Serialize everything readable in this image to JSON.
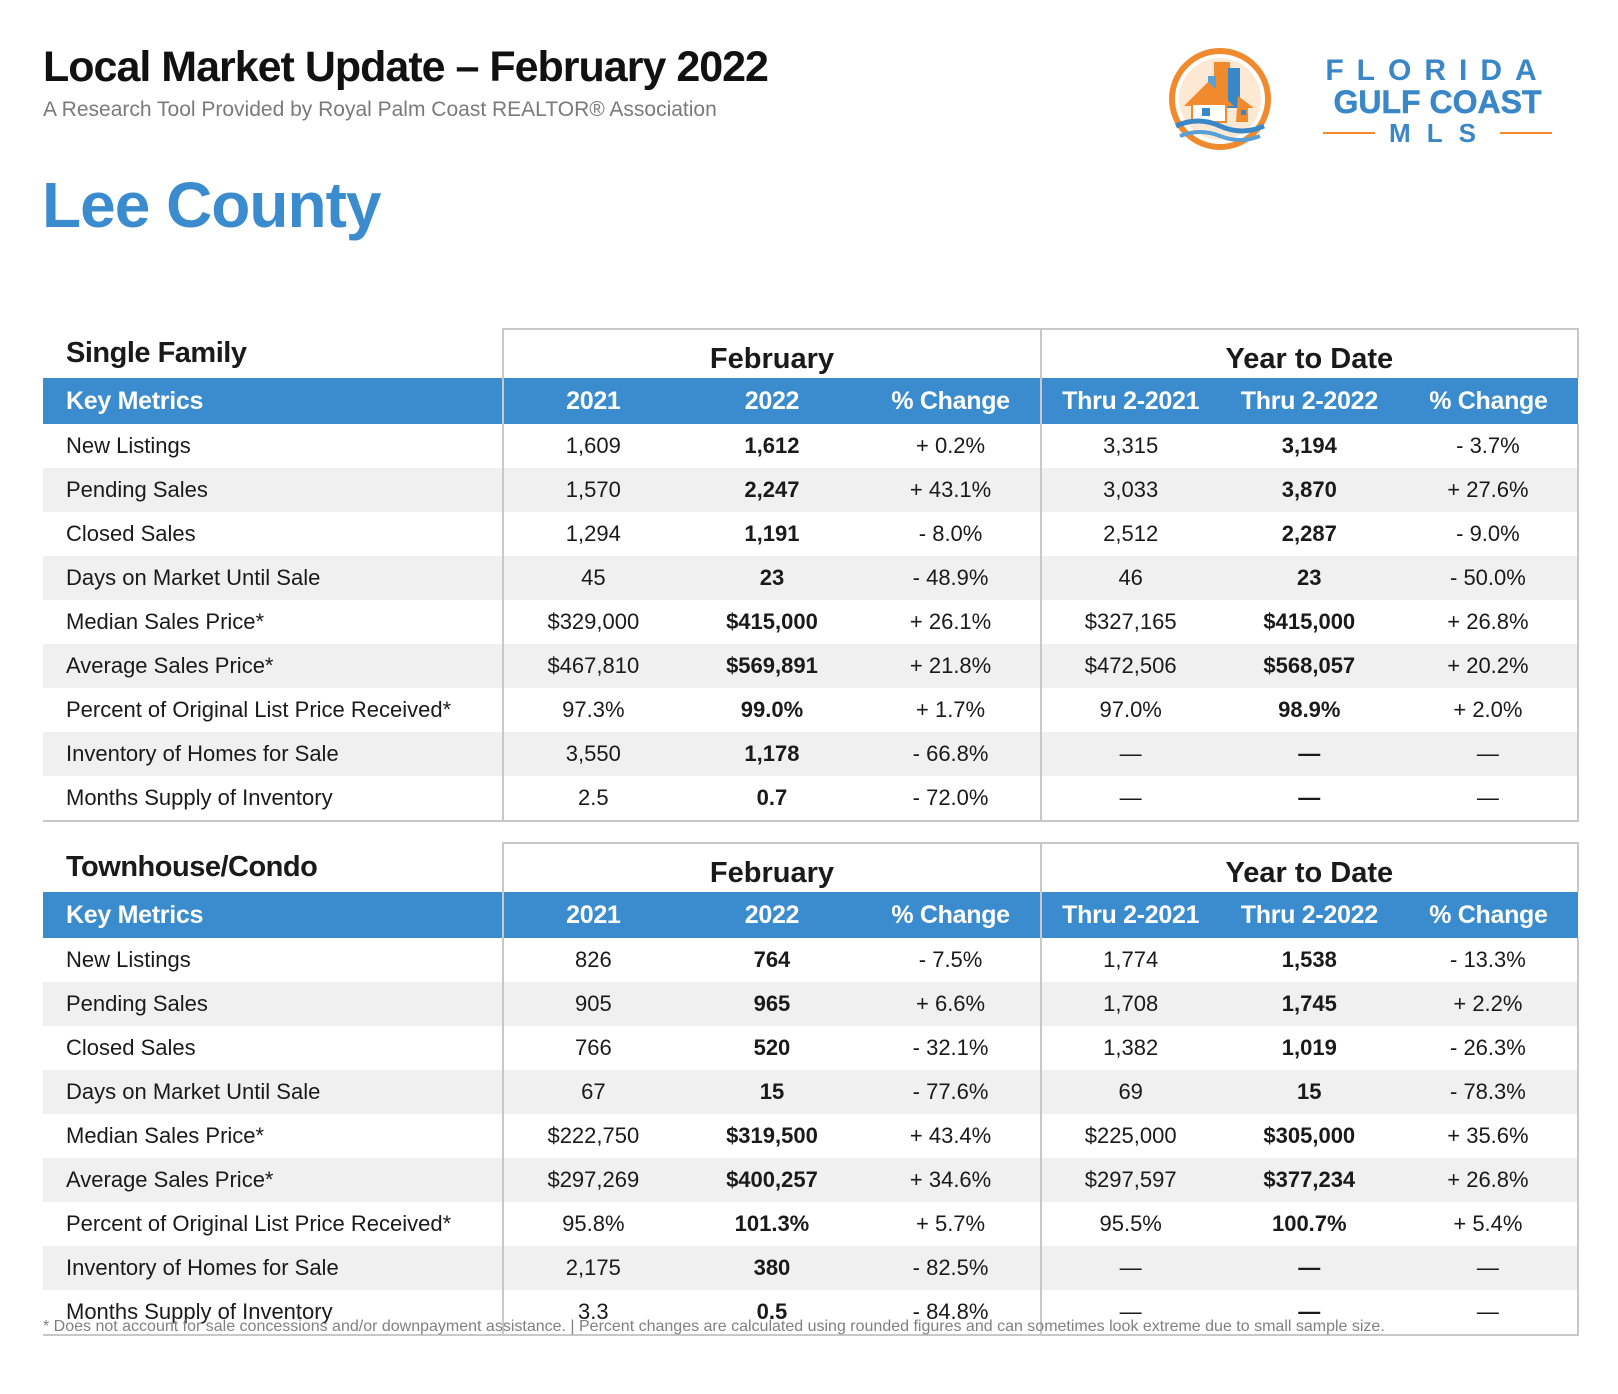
{
  "header": {
    "title": "Local Market Update – February 2022",
    "subtitle": "A Research Tool Provided by Royal Palm Coast REALTOR® Association",
    "county": "Lee County"
  },
  "logo": {
    "line1": "FLORIDA",
    "line2": "GULF COAST",
    "line3": "MLS",
    "colors": {
      "blue": "#3a87c8",
      "orange": "#f08a2c"
    }
  },
  "colors": {
    "accent_blue": "#3a8cce",
    "row_shade": "#f0f0f0",
    "border": "#c8c8c8"
  },
  "columns": {
    "group_month": "February",
    "group_ytd": "Year to Date",
    "key_metrics": "Key Metrics",
    "m2021": "2021",
    "m2022": "2022",
    "pct": "% Change",
    "ytd2021": "Thru 2-2021",
    "ytd2022": "Thru 2-2022"
  },
  "single_family": {
    "title": "Single Family",
    "rows": [
      [
        "New Listings",
        "1,609",
        "1,612",
        "+ 0.2%",
        "3,315",
        "3,194",
        "- 3.7%"
      ],
      [
        "Pending Sales",
        "1,570",
        "2,247",
        "+ 43.1%",
        "3,033",
        "3,870",
        "+ 27.6%"
      ],
      [
        "Closed Sales",
        "1,294",
        "1,191",
        "- 8.0%",
        "2,512",
        "2,287",
        "- 9.0%"
      ],
      [
        "Days on Market Until Sale",
        "45",
        "23",
        "- 48.9%",
        "46",
        "23",
        "- 50.0%"
      ],
      [
        "Median Sales Price*",
        "$329,000",
        "$415,000",
        "+ 26.1%",
        "$327,165",
        "$415,000",
        "+ 26.8%"
      ],
      [
        "Average Sales Price*",
        "$467,810",
        "$569,891",
        "+ 21.8%",
        "$472,506",
        "$568,057",
        "+ 20.2%"
      ],
      [
        "Percent of Original List Price Received*",
        "97.3%",
        "99.0%",
        "+ 1.7%",
        "97.0%",
        "98.9%",
        "+ 2.0%"
      ],
      [
        "Inventory of Homes for Sale",
        "3,550",
        "1,178",
        "- 66.8%",
        "—",
        "—",
        "—"
      ],
      [
        "Months Supply of Inventory",
        "2.5",
        "0.7",
        "- 72.0%",
        "—",
        "—",
        "—"
      ]
    ]
  },
  "townhouse_condo": {
    "title": "Townhouse/Condo",
    "rows": [
      [
        "New Listings",
        "826",
        "764",
        "- 7.5%",
        "1,774",
        "1,538",
        "- 13.3%"
      ],
      [
        "Pending Sales",
        "905",
        "965",
        "+ 6.6%",
        "1,708",
        "1,745",
        "+ 2.2%"
      ],
      [
        "Closed Sales",
        "766",
        "520",
        "- 32.1%",
        "1,382",
        "1,019",
        "- 26.3%"
      ],
      [
        "Days on Market Until Sale",
        "67",
        "15",
        "- 77.6%",
        "69",
        "15",
        "- 78.3%"
      ],
      [
        "Median Sales Price*",
        "$222,750",
        "$319,500",
        "+ 43.4%",
        "$225,000",
        "$305,000",
        "+ 35.6%"
      ],
      [
        "Average Sales Price*",
        "$297,269",
        "$400,257",
        "+ 34.6%",
        "$297,597",
        "$377,234",
        "+ 26.8%"
      ],
      [
        "Percent of Original List Price Received*",
        "95.8%",
        "101.3%",
        "+ 5.7%",
        "95.5%",
        "100.7%",
        "+ 5.4%"
      ],
      [
        "Inventory of Homes for Sale",
        "2,175",
        "380",
        "- 82.5%",
        "—",
        "—",
        "—"
      ],
      [
        "Months Supply of Inventory",
        "3.3",
        "0.5",
        "- 84.8%",
        "—",
        "—",
        "—"
      ]
    ]
  },
  "footnote": "* Does not account for sale concessions and/or downpayment assistance. | Percent changes are calculated using rounded figures and can sometimes look extreme due to small sample size."
}
